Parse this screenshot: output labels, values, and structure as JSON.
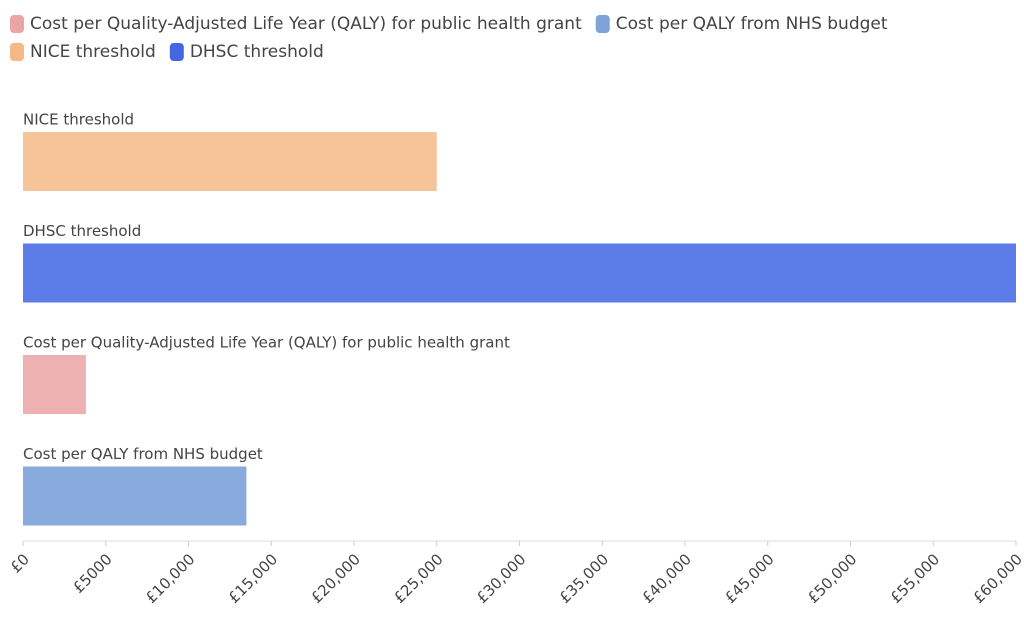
{
  "chart_data": {
    "type": "hbar",
    "legend": [
      {
        "name": "Cost per Quality-Adjusted Life Year (QALY) for public health grant",
        "color": "#eaa6a6"
      },
      {
        "name": "Cost per QALY from NHS budget",
        "color": "#7fa2d8"
      },
      {
        "name": "NICE threshold",
        "color": "#f5b887"
      },
      {
        "name": "DHSC threshold",
        "color": "#4467e0"
      }
    ],
    "categories": [
      "NICE threshold",
      "DHSC threshold",
      "Cost per Quality-Adjusted Life Year (QALY) for public health grant",
      "Cost per QALY from NHS budget"
    ],
    "values": [
      25000,
      60000,
      3800,
      13500
    ],
    "colors": [
      "#f5c498",
      "#5b7be6",
      "#eeb1b1",
      "#88aadc"
    ],
    "xlim": [
      0,
      60000
    ],
    "xticks": [
      {
        "value": 0,
        "label": "£0"
      },
      {
        "value": 5000,
        "label": "£5000"
      },
      {
        "value": 10000,
        "label": "£10,000"
      },
      {
        "value": 15000,
        "label": "£15,000"
      },
      {
        "value": 20000,
        "label": "£20,000"
      },
      {
        "value": 25000,
        "label": "£25,000"
      },
      {
        "value": 30000,
        "label": "£30,000"
      },
      {
        "value": 35000,
        "label": "£35,000"
      },
      {
        "value": 40000,
        "label": "£40,000"
      },
      {
        "value": 45000,
        "label": "£45,000"
      },
      {
        "value": 50000,
        "label": "£50,000"
      },
      {
        "value": 55000,
        "label": "£55,000"
      },
      {
        "value": 60000,
        "label": "£60,000"
      }
    ]
  }
}
